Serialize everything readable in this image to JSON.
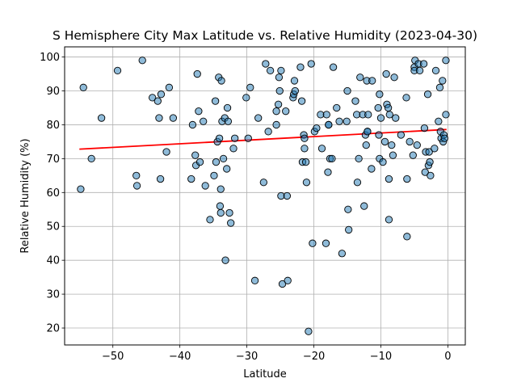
{
  "chart_data": {
    "type": "scatter",
    "title": "S Hemisphere City Max Latitude vs. Relative Humidity (2023-04-30)",
    "xlabel": "Latitude",
    "ylabel": "Relative Humidity (%)",
    "xlim": [
      -57.2,
      2.6
    ],
    "ylim": [
      15,
      103
    ],
    "xticks": [
      -50,
      -40,
      -30,
      -20,
      -10,
      0
    ],
    "yticks": [
      20,
      30,
      40,
      50,
      60,
      70,
      80,
      90,
      100
    ],
    "grid": true,
    "colors": {
      "marker_fill": "#1f77b4",
      "marker_edge": "#000000",
      "regression_line": "#ff0000",
      "grid": "#b0b0b0"
    },
    "regression": {
      "x": [
        -55.0,
        -0.2
      ],
      "y": [
        72.8,
        78.6
      ]
    },
    "points": [
      [
        -54.8,
        61
      ],
      [
        -54.4,
        91
      ],
      [
        -53.2,
        70
      ],
      [
        -51.7,
        82
      ],
      [
        -49.3,
        96
      ],
      [
        -46.5,
        65
      ],
      [
        -46.4,
        62
      ],
      [
        -45.6,
        99
      ],
      [
        -44.1,
        88
      ],
      [
        -43.3,
        87
      ],
      [
        -43.1,
        82
      ],
      [
        -42.9,
        64
      ],
      [
        -42.8,
        89
      ],
      [
        -42.0,
        72
      ],
      [
        -41.6,
        91
      ],
      [
        -41.0,
        82
      ],
      [
        -38.3,
        64
      ],
      [
        -38.1,
        80
      ],
      [
        -37.7,
        71
      ],
      [
        -37.6,
        68
      ],
      [
        -37.4,
        95
      ],
      [
        -37.2,
        84
      ],
      [
        -37.0,
        69
      ],
      [
        -36.5,
        81
      ],
      [
        -36.2,
        62
      ],
      [
        -35.5,
        52
      ],
      [
        -34.9,
        65
      ],
      [
        -34.7,
        87
      ],
      [
        -34.6,
        69
      ],
      [
        -34.4,
        75
      ],
      [
        -34.2,
        94
      ],
      [
        -34.1,
        76
      ],
      [
        -34.0,
        56
      ],
      [
        -33.9,
        61
      ],
      [
        -33.9,
        54
      ],
      [
        -33.8,
        93
      ],
      [
        -33.7,
        81
      ],
      [
        -33.5,
        70
      ],
      [
        -33.3,
        82
      ],
      [
        -33.2,
        40
      ],
      [
        -33.0,
        67
      ],
      [
        -32.9,
        85
      ],
      [
        -32.8,
        81
      ],
      [
        -32.6,
        54
      ],
      [
        -32.4,
        51
      ],
      [
        -32.0,
        73
      ],
      [
        -31.8,
        76
      ],
      [
        -30.1,
        88
      ],
      [
        -29.8,
        76
      ],
      [
        -29.5,
        91
      ],
      [
        -28.8,
        34
      ],
      [
        -28.3,
        82
      ],
      [
        -27.5,
        63
      ],
      [
        -27.2,
        98
      ],
      [
        -26.8,
        78
      ],
      [
        -26.5,
        96
      ],
      [
        -25.6,
        80
      ],
      [
        -25.6,
        84
      ],
      [
        -25.3,
        86
      ],
      [
        -25.2,
        94
      ],
      [
        -25.1,
        90
      ],
      [
        -24.9,
        59
      ],
      [
        -24.9,
        96
      ],
      [
        -24.7,
        33
      ],
      [
        -24.2,
        84
      ],
      [
        -24.0,
        59
      ],
      [
        -23.9,
        34
      ],
      [
        -23.1,
        88
      ],
      [
        -23.0,
        89
      ],
      [
        -22.9,
        93
      ],
      [
        -22.8,
        90
      ],
      [
        -22.0,
        97
      ],
      [
        -21.8,
        87
      ],
      [
        -21.7,
        69
      ],
      [
        -21.5,
        77
      ],
      [
        -21.4,
        76
      ],
      [
        -21.4,
        73
      ],
      [
        -21.2,
        69
      ],
      [
        -21.1,
        63
      ],
      [
        -20.8,
        19
      ],
      [
        -20.4,
        98
      ],
      [
        -20.2,
        45
      ],
      [
        -19.9,
        78
      ],
      [
        -19.6,
        79
      ],
      [
        -19.0,
        83
      ],
      [
        -18.8,
        73
      ],
      [
        -18.2,
        45
      ],
      [
        -18.1,
        83
      ],
      [
        -17.9,
        66
      ],
      [
        -17.8,
        80
      ],
      [
        -17.8,
        80
      ],
      [
        -17.6,
        70
      ],
      [
        -17.3,
        70
      ],
      [
        -17.1,
        97
      ],
      [
        -16.6,
        85
      ],
      [
        -16.2,
        81
      ],
      [
        -15.8,
        42
      ],
      [
        -15.1,
        81
      ],
      [
        -15.0,
        90
      ],
      [
        -14.9,
        55
      ],
      [
        -14.8,
        49
      ],
      [
        -13.8,
        87
      ],
      [
        -13.6,
        83
      ],
      [
        -13.5,
        63
      ],
      [
        -13.3,
        70
      ],
      [
        -13.1,
        94
      ],
      [
        -12.7,
        83
      ],
      [
        -12.5,
        56
      ],
      [
        -12.3,
        77
      ],
      [
        -12.2,
        74
      ],
      [
        -12.1,
        93
      ],
      [
        -12.0,
        78
      ],
      [
        -12.0,
        78
      ],
      [
        -11.9,
        83
      ],
      [
        -11.4,
        67
      ],
      [
        -11.3,
        93
      ],
      [
        -10.4,
        85
      ],
      [
        -10.3,
        77
      ],
      [
        -10.2,
        89
      ],
      [
        -10.2,
        70
      ],
      [
        -10.0,
        82
      ],
      [
        -9.7,
        69
      ],
      [
        -9.4,
        75
      ],
      [
        -9.2,
        95
      ],
      [
        -9.1,
        86
      ],
      [
        -8.9,
        85
      ],
      [
        -8.8,
        64
      ],
      [
        -8.8,
        52
      ],
      [
        -8.7,
        83
      ],
      [
        -8.4,
        74
      ],
      [
        -8.2,
        71
      ],
      [
        -8.0,
        94
      ],
      [
        -7.8,
        82
      ],
      [
        -7.0,
        77
      ],
      [
        -6.2,
        88
      ],
      [
        -6.1,
        64
      ],
      [
        -6.1,
        47
      ],
      [
        -5.7,
        75
      ],
      [
        -5.2,
        71
      ],
      [
        -5.0,
        97
      ],
      [
        -5.0,
        96
      ],
      [
        -4.9,
        99
      ],
      [
        -4.6,
        74
      ],
      [
        -4.4,
        98
      ],
      [
        -4.2,
        96
      ],
      [
        -3.6,
        98
      ],
      [
        -3.5,
        79
      ],
      [
        -3.4,
        66
      ],
      [
        -3.3,
        72
      ],
      [
        -3.0,
        89
      ],
      [
        -2.9,
        68
      ],
      [
        -2.8,
        72
      ],
      [
        -2.7,
        69
      ],
      [
        -2.6,
        65
      ],
      [
        -2.0,
        73
      ],
      [
        -1.8,
        96
      ],
      [
        -1.4,
        81
      ],
      [
        -1.2,
        91
      ],
      [
        -1.1,
        78
      ],
      [
        -1.0,
        76
      ],
      [
        -0.8,
        93
      ],
      [
        -0.7,
        75
      ],
      [
        -0.6,
        77
      ],
      [
        -0.5,
        76
      ],
      [
        -0.3,
        83
      ],
      [
        -0.3,
        99
      ]
    ]
  }
}
